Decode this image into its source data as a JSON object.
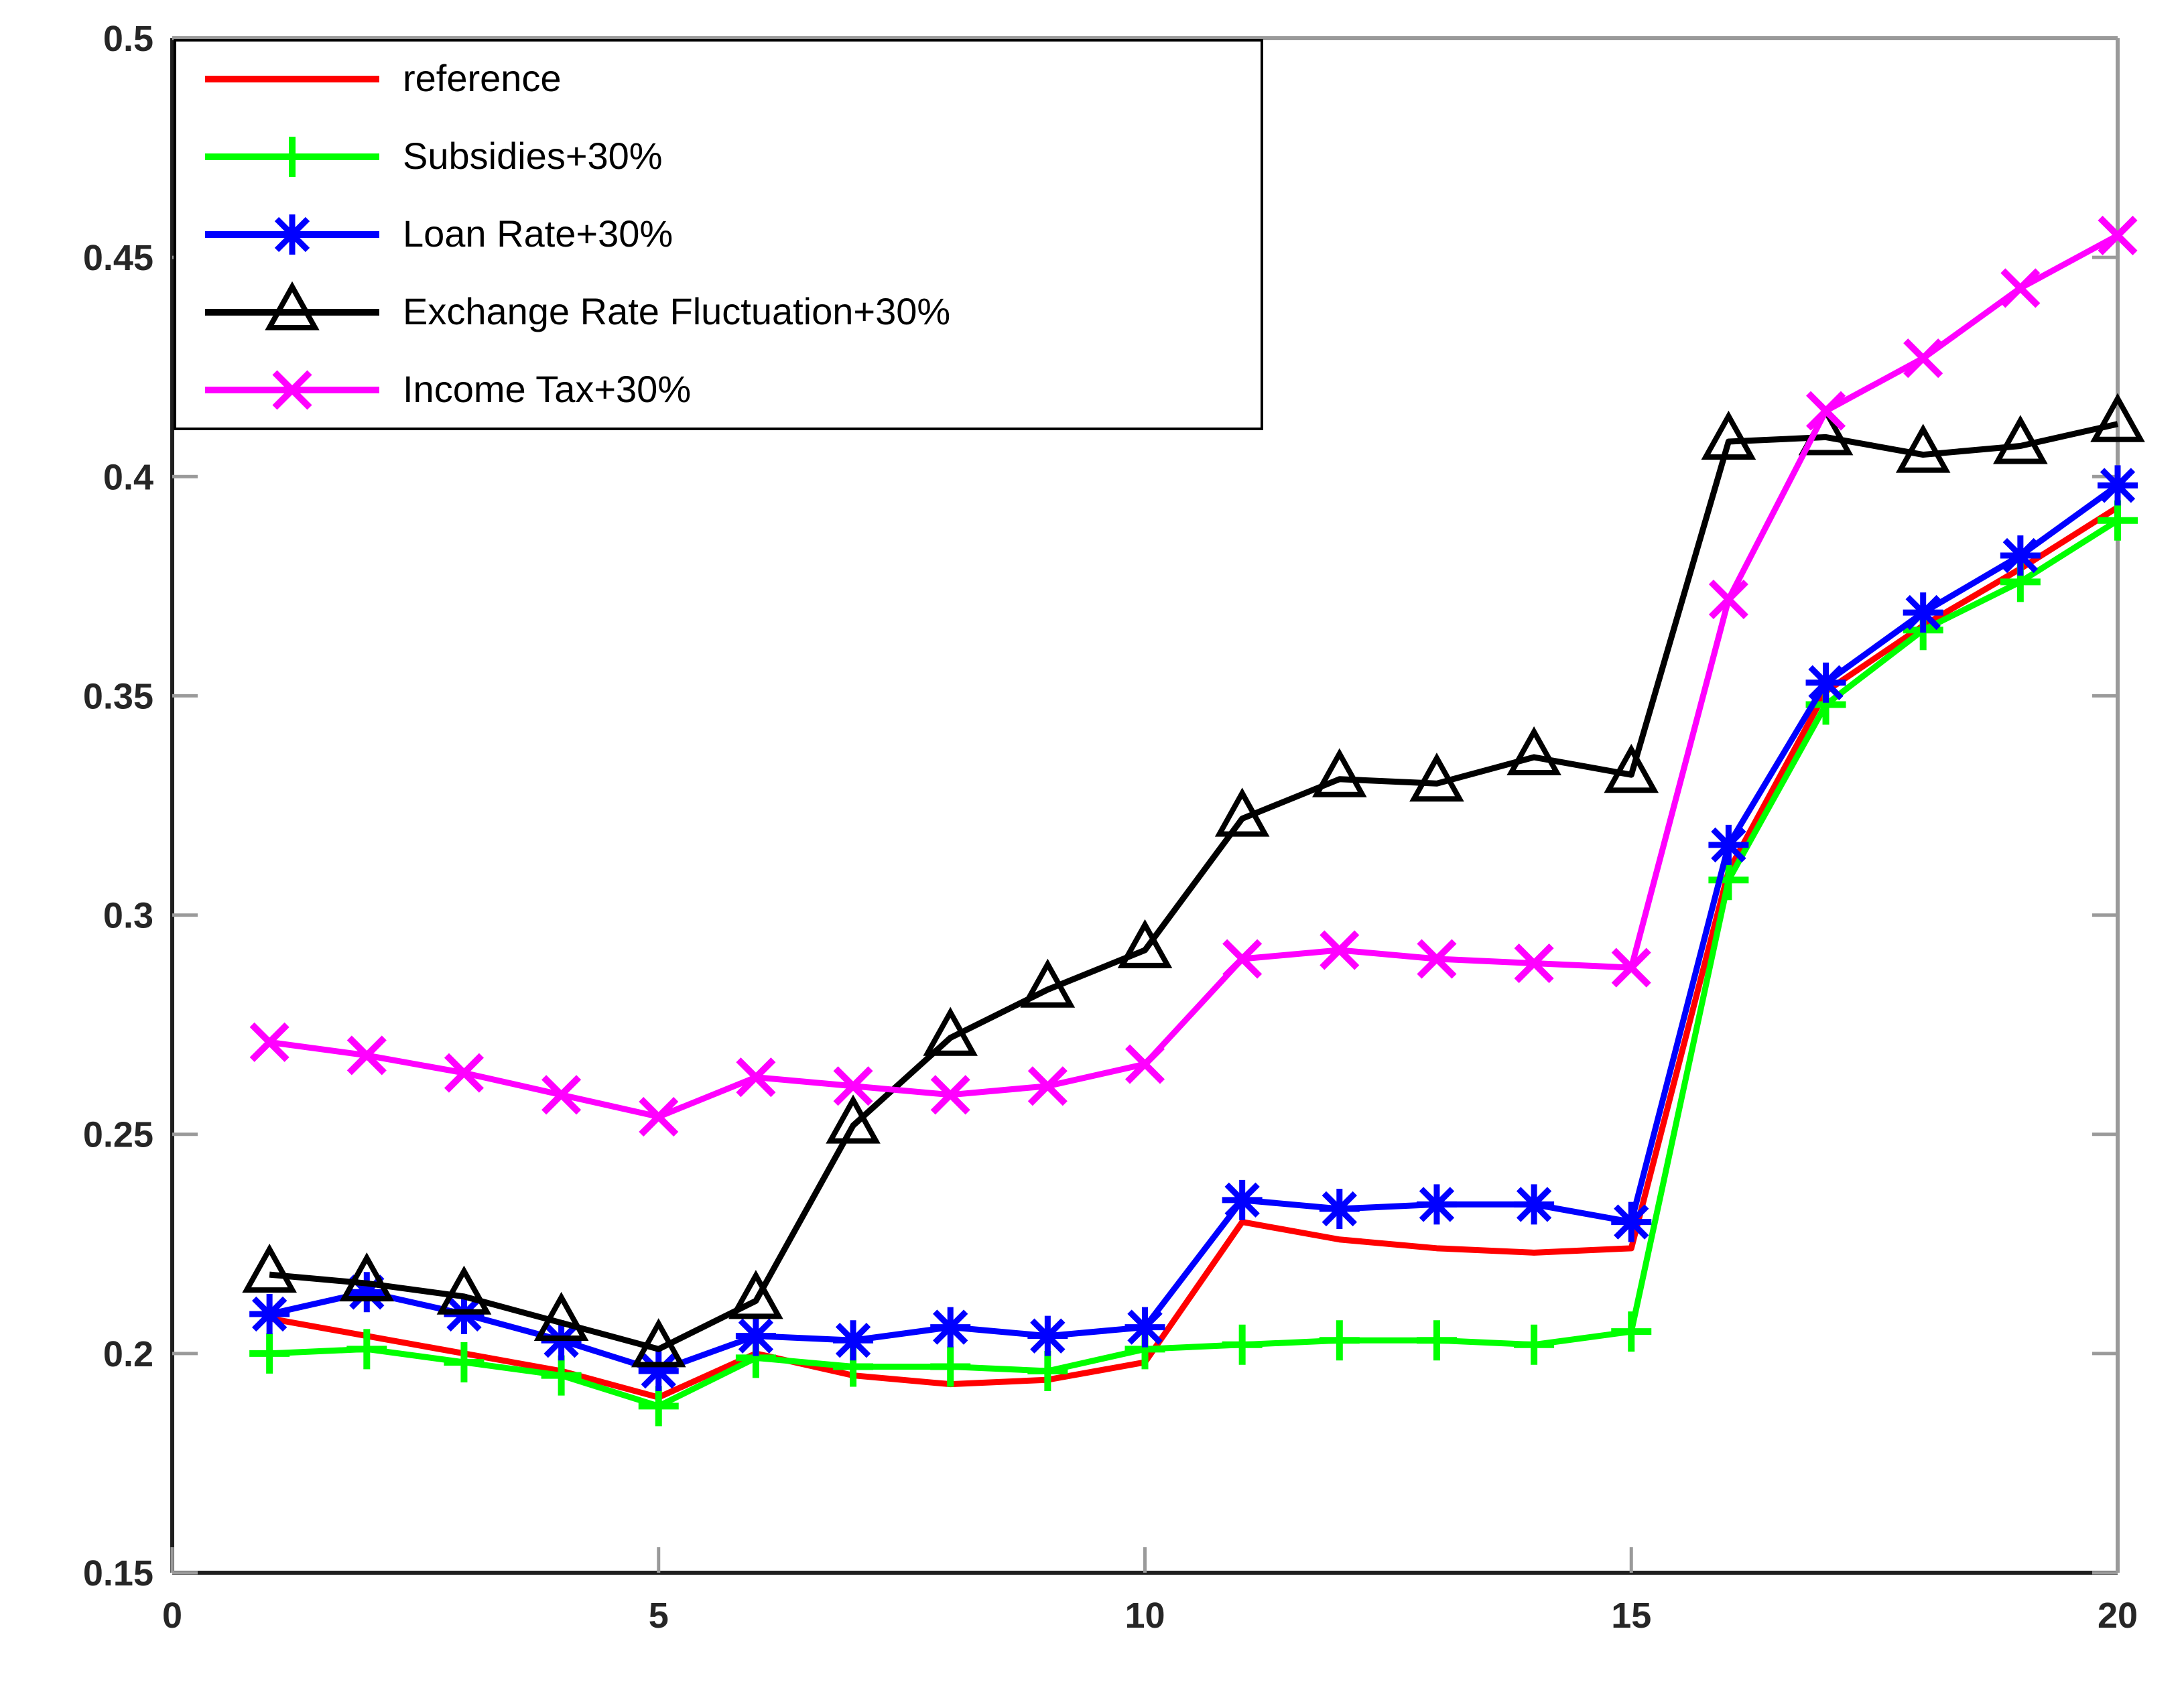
{
  "chart_data": {
    "type": "line",
    "title": "",
    "xlabel": "",
    "ylabel": "",
    "xlim": [
      0,
      20
    ],
    "ylim": [
      0.15,
      0.5
    ],
    "x_ticks": [
      0,
      5,
      10,
      15,
      20
    ],
    "x_tick_labels": [
      "0",
      "5",
      "10",
      "15",
      "20"
    ],
    "y_ticks": [
      0.15,
      0.2,
      0.25,
      0.3,
      0.35,
      0.4,
      0.45,
      0.5
    ],
    "y_tick_labels": [
      "0.15",
      "0.2",
      "0.25",
      "0.3",
      "0.35",
      "0.4",
      "0.45",
      "0.5"
    ],
    "grid": false,
    "legend_position": "top-left",
    "x": [
      1,
      2,
      3,
      4,
      5,
      6,
      7,
      8,
      9,
      10,
      11,
      12,
      13,
      14,
      15,
      16,
      17,
      18,
      19,
      20
    ],
    "series": [
      {
        "name": "reference",
        "color": "#ff0000",
        "marker": "none",
        "values": [
          0.208,
          0.204,
          0.2,
          0.196,
          0.19,
          0.2,
          0.195,
          0.193,
          0.194,
          0.198,
          0.23,
          0.226,
          0.224,
          0.223,
          0.224,
          0.31,
          0.351,
          0.366,
          0.379,
          0.393
        ]
      },
      {
        "name": "Subsidies+30%",
        "color": "#00ff00",
        "marker": "plus",
        "values": [
          0.2,
          0.201,
          0.198,
          0.195,
          0.188,
          0.199,
          0.197,
          0.197,
          0.196,
          0.201,
          0.202,
          0.203,
          0.203,
          0.202,
          0.205,
          0.308,
          0.348,
          0.365,
          0.376,
          0.39
        ]
      },
      {
        "name": "Loan Rate+30%",
        "color": "#0000ff",
        "marker": "asterisk",
        "values": [
          0.209,
          0.214,
          0.209,
          0.203,
          0.196,
          0.204,
          0.203,
          0.206,
          0.204,
          0.206,
          0.235,
          0.233,
          0.234,
          0.234,
          0.23,
          0.316,
          0.353,
          0.369,
          0.382,
          0.398
        ]
      },
      {
        "name": "Exchange Rate Fluctuation+30%",
        "color": "#000000",
        "marker": "triangle",
        "values": [
          0.218,
          0.216,
          0.213,
          0.207,
          0.201,
          0.212,
          0.252,
          0.272,
          0.283,
          0.292,
          0.322,
          0.331,
          0.33,
          0.336,
          0.332,
          0.408,
          0.409,
          0.405,
          0.407,
          0.412
        ]
      },
      {
        "name": "Income Tax+30%",
        "color": "#ff00ff",
        "marker": "x",
        "values": [
          0.271,
          0.268,
          0.264,
          0.259,
          0.254,
          0.263,
          0.261,
          0.259,
          0.261,
          0.266,
          0.29,
          0.292,
          0.29,
          0.289,
          0.288,
          0.372,
          0.415,
          0.427,
          0.443,
          0.455
        ]
      }
    ],
    "axis_colors": {
      "main_axis": "#1f1f1f",
      "box_top_right": "#9a9a9a",
      "tick_label": "#262626"
    },
    "legend_labels": [
      "reference",
      "Subsidies+30%",
      "Loan Rate+30%",
      "Exchange Rate Fluctuation+30%",
      "Income Tax+30%"
    ]
  }
}
